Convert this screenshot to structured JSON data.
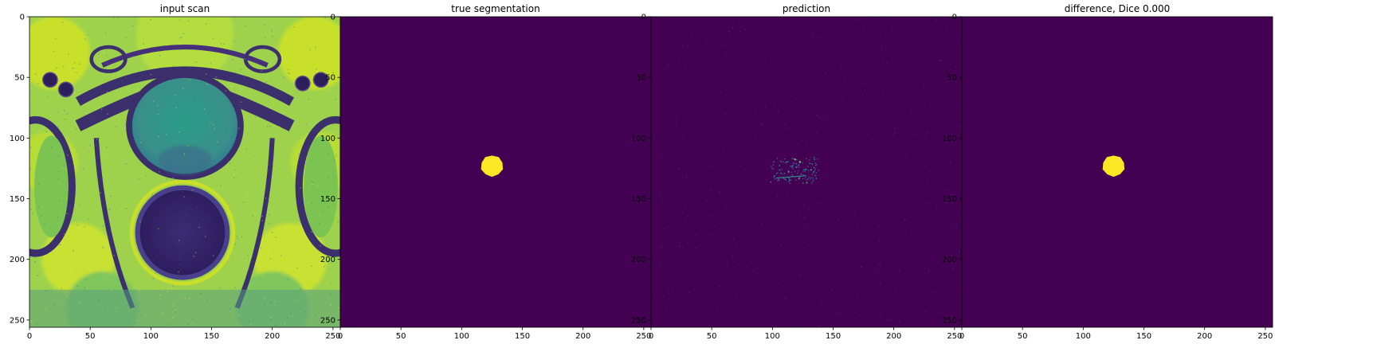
{
  "figure": {
    "panels": [
      {
        "id": "input",
        "title": "input scan"
      },
      {
        "id": "truth",
        "title": "true segmentation"
      },
      {
        "id": "pred",
        "title": "prediction"
      },
      {
        "id": "diff",
        "title": "difference, Dice 0.000"
      }
    ],
    "colors": {
      "viridis_low": "#440154",
      "viridis_high": "#fde725",
      "viridis_mid": "#21918c",
      "viridis_green": "#7ad151"
    }
  },
  "chart_data": [
    {
      "type": "heatmap",
      "title": "input scan",
      "xlabel": "",
      "ylabel": "",
      "xlim": [
        0,
        256
      ],
      "ylim": [
        256,
        0
      ],
      "xticks": [
        0,
        50,
        100,
        150,
        200,
        250
      ],
      "yticks": [
        0,
        50,
        100,
        150,
        200,
        250
      ],
      "colormap": "viridis",
      "content": "MRI pelvic scan"
    },
    {
      "type": "heatmap",
      "title": "true segmentation",
      "xlabel": "",
      "ylabel": "",
      "xlim": [
        0,
        256
      ],
      "ylim": [
        256,
        0
      ],
      "xticks": [
        0,
        50,
        100,
        150,
        200,
        250
      ],
      "yticks": [
        0,
        50,
        100,
        150,
        200,
        250
      ],
      "colormap": "viridis",
      "mask_center": [
        125,
        123
      ],
      "mask_radius": 9
    },
    {
      "type": "heatmap",
      "title": "prediction",
      "xlabel": "",
      "ylabel": "",
      "xlim": [
        0,
        256
      ],
      "ylim": [
        256,
        0
      ],
      "xticks": [
        0,
        50,
        100,
        150,
        200,
        250
      ],
      "yticks": [
        0,
        50,
        100,
        150,
        200,
        250
      ],
      "colormap": "viridis",
      "speckle_center": [
        118,
        126
      ]
    },
    {
      "type": "heatmap",
      "title": "difference, Dice 0.000",
      "xlabel": "",
      "ylabel": "",
      "xlim": [
        0,
        256
      ],
      "ylim": [
        256,
        0
      ],
      "xticks": [
        0,
        50,
        100,
        150,
        200,
        250
      ],
      "yticks": [
        0,
        50,
        100,
        150,
        200,
        250
      ],
      "colormap": "viridis",
      "mask_center": [
        125,
        123
      ],
      "mask_radius": 9
    }
  ]
}
